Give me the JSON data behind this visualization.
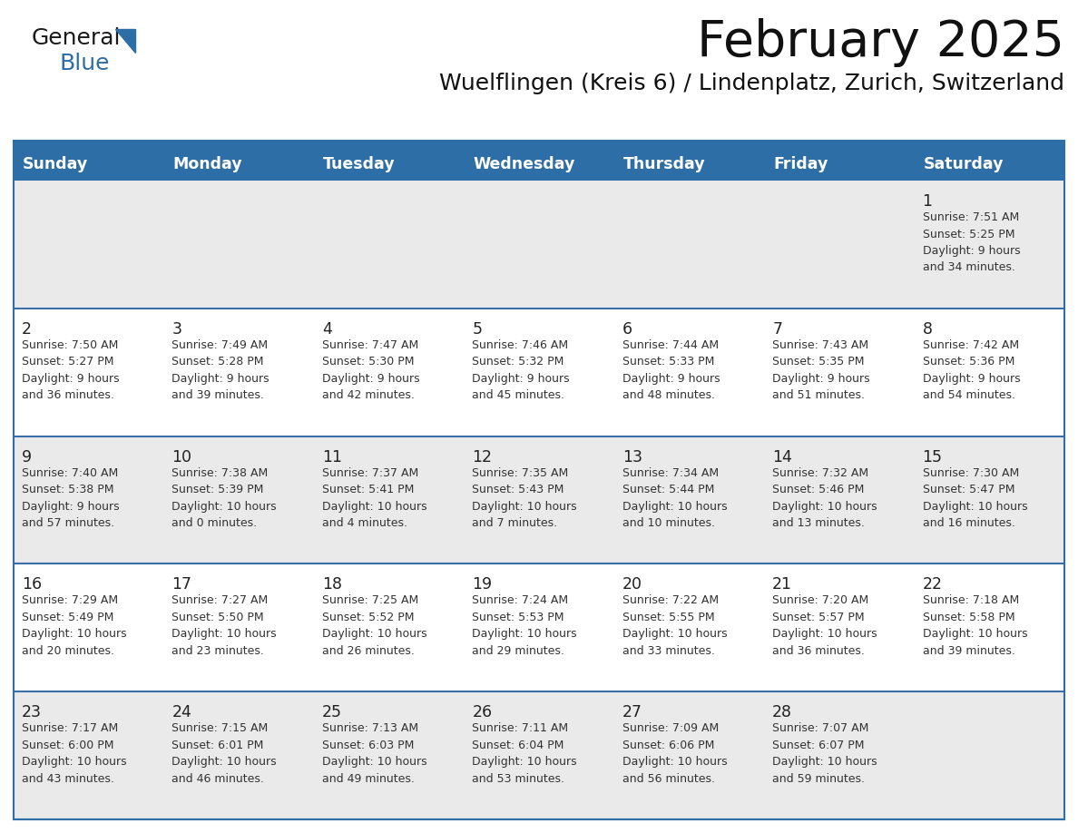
{
  "title": "February 2025",
  "subtitle": "Wuelflingen (Kreis 6) / Lindenplatz, Zurich, Switzerland",
  "header_bg": "#2E6EA6",
  "header_text": "#FFFFFF",
  "weekdays": [
    "Sunday",
    "Monday",
    "Tuesday",
    "Wednesday",
    "Thursday",
    "Friday",
    "Saturday"
  ],
  "row_bg_odd": "#EAEAEA",
  "row_bg_even": "#FFFFFF",
  "border_color": "#2E6EA6",
  "separator_color": "#3A6EA8",
  "calendar": [
    [
      null,
      null,
      null,
      null,
      null,
      null,
      {
        "day": "1",
        "sunrise": "7:51 AM",
        "sunset": "5:25 PM",
        "daylight": "9 hours",
        "daylight2": "and 34 minutes."
      }
    ],
    [
      {
        "day": "2",
        "sunrise": "7:50 AM",
        "sunset": "5:27 PM",
        "daylight": "9 hours",
        "daylight2": "and 36 minutes."
      },
      {
        "day": "3",
        "sunrise": "7:49 AM",
        "sunset": "5:28 PM",
        "daylight": "9 hours",
        "daylight2": "and 39 minutes."
      },
      {
        "day": "4",
        "sunrise": "7:47 AM",
        "sunset": "5:30 PM",
        "daylight": "9 hours",
        "daylight2": "and 42 minutes."
      },
      {
        "day": "5",
        "sunrise": "7:46 AM",
        "sunset": "5:32 PM",
        "daylight": "9 hours",
        "daylight2": "and 45 minutes."
      },
      {
        "day": "6",
        "sunrise": "7:44 AM",
        "sunset": "5:33 PM",
        "daylight": "9 hours",
        "daylight2": "and 48 minutes."
      },
      {
        "day": "7",
        "sunrise": "7:43 AM",
        "sunset": "5:35 PM",
        "daylight": "9 hours",
        "daylight2": "and 51 minutes."
      },
      {
        "day": "8",
        "sunrise": "7:42 AM",
        "sunset": "5:36 PM",
        "daylight": "9 hours",
        "daylight2": "and 54 minutes."
      }
    ],
    [
      {
        "day": "9",
        "sunrise": "7:40 AM",
        "sunset": "5:38 PM",
        "daylight": "9 hours",
        "daylight2": "and 57 minutes."
      },
      {
        "day": "10",
        "sunrise": "7:38 AM",
        "sunset": "5:39 PM",
        "daylight": "10 hours",
        "daylight2": "and 0 minutes."
      },
      {
        "day": "11",
        "sunrise": "7:37 AM",
        "sunset": "5:41 PM",
        "daylight": "10 hours",
        "daylight2": "and 4 minutes."
      },
      {
        "day": "12",
        "sunrise": "7:35 AM",
        "sunset": "5:43 PM",
        "daylight": "10 hours",
        "daylight2": "and 7 minutes."
      },
      {
        "day": "13",
        "sunrise": "7:34 AM",
        "sunset": "5:44 PM",
        "daylight": "10 hours",
        "daylight2": "and 10 minutes."
      },
      {
        "day": "14",
        "sunrise": "7:32 AM",
        "sunset": "5:46 PM",
        "daylight": "10 hours",
        "daylight2": "and 13 minutes."
      },
      {
        "day": "15",
        "sunrise": "7:30 AM",
        "sunset": "5:47 PM",
        "daylight": "10 hours",
        "daylight2": "and 16 minutes."
      }
    ],
    [
      {
        "day": "16",
        "sunrise": "7:29 AM",
        "sunset": "5:49 PM",
        "daylight": "10 hours",
        "daylight2": "and 20 minutes."
      },
      {
        "day": "17",
        "sunrise": "7:27 AM",
        "sunset": "5:50 PM",
        "daylight": "10 hours",
        "daylight2": "and 23 minutes."
      },
      {
        "day": "18",
        "sunrise": "7:25 AM",
        "sunset": "5:52 PM",
        "daylight": "10 hours",
        "daylight2": "and 26 minutes."
      },
      {
        "day": "19",
        "sunrise": "7:24 AM",
        "sunset": "5:53 PM",
        "daylight": "10 hours",
        "daylight2": "and 29 minutes."
      },
      {
        "day": "20",
        "sunrise": "7:22 AM",
        "sunset": "5:55 PM",
        "daylight": "10 hours",
        "daylight2": "and 33 minutes."
      },
      {
        "day": "21",
        "sunrise": "7:20 AM",
        "sunset": "5:57 PM",
        "daylight": "10 hours",
        "daylight2": "and 36 minutes."
      },
      {
        "day": "22",
        "sunrise": "7:18 AM",
        "sunset": "5:58 PM",
        "daylight": "10 hours",
        "daylight2": "and 39 minutes."
      }
    ],
    [
      {
        "day": "23",
        "sunrise": "7:17 AM",
        "sunset": "6:00 PM",
        "daylight": "10 hours",
        "daylight2": "and 43 minutes."
      },
      {
        "day": "24",
        "sunrise": "7:15 AM",
        "sunset": "6:01 PM",
        "daylight": "10 hours",
        "daylight2": "and 46 minutes."
      },
      {
        "day": "25",
        "sunrise": "7:13 AM",
        "sunset": "6:03 PM",
        "daylight": "10 hours",
        "daylight2": "and 49 minutes."
      },
      {
        "day": "26",
        "sunrise": "7:11 AM",
        "sunset": "6:04 PM",
        "daylight": "10 hours",
        "daylight2": "and 53 minutes."
      },
      {
        "day": "27",
        "sunrise": "7:09 AM",
        "sunset": "6:06 PM",
        "daylight": "10 hours",
        "daylight2": "and 56 minutes."
      },
      {
        "day": "28",
        "sunrise": "7:07 AM",
        "sunset": "6:07 PM",
        "daylight": "10 hours",
        "daylight2": "and 59 minutes."
      },
      null
    ]
  ]
}
